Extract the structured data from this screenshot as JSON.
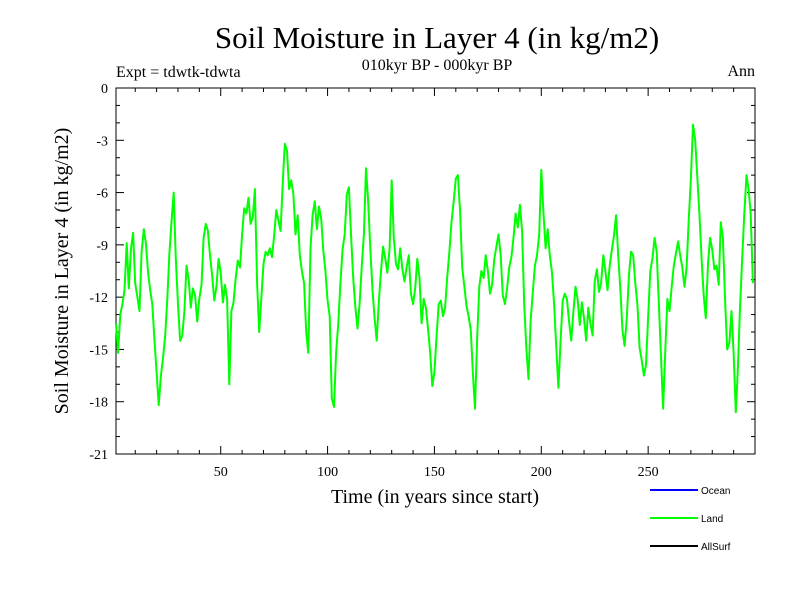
{
  "chart_data": {
    "type": "line",
    "title": "Soil Moisture in Layer 4 (in kg/m2)",
    "subtitle": "010kyr BP - 000kyr BP",
    "experiment_label": "Expt = tdwtk-tdwta",
    "period_label": "Ann",
    "xlabel": "Time (in years since start)",
    "ylabel": "Soil Moisture in Layer 4 (in kg/m2)",
    "xlim": [
      1,
      300
    ],
    "ylim": [
      -21,
      0
    ],
    "x_ticks": [
      50,
      100,
      150,
      200,
      250
    ],
    "y_ticks": [
      0,
      -3,
      -6,
      -9,
      -12,
      -15,
      -18,
      -21
    ],
    "grid": false,
    "legend": {
      "position": "bottom-right",
      "entries": [
        {
          "name": "Ocean",
          "color": "#0000ff"
        },
        {
          "name": "Land",
          "color": "#00ff00"
        },
        {
          "name": "AllSurf",
          "color": "#000000"
        }
      ]
    },
    "series": [
      {
        "name": "Land",
        "color": "#00ff00",
        "x_start": 1,
        "x_step": 1,
        "values": [
          -13.5,
          -15.2,
          -13.0,
          -12.4,
          -11.6,
          -8.9,
          -11.5,
          -9.2,
          -8.3,
          -11.2,
          -12.0,
          -12.8,
          -9.4,
          -8.1,
          -8.9,
          -10.6,
          -11.6,
          -12.4,
          -14.5,
          -16.3,
          -18.2,
          -16.5,
          -15.5,
          -14.2,
          -12.1,
          -9.5,
          -7.6,
          -6.0,
          -9.8,
          -12.4,
          -14.5,
          -14.2,
          -12.8,
          -10.2,
          -11.0,
          -12.6,
          -11.5,
          -11.9,
          -13.4,
          -12.1,
          -11.3,
          -8.6,
          -7.8,
          -8.2,
          -9.6,
          -10.8,
          -12.2,
          -11.4,
          -9.8,
          -10.6,
          -12.3,
          -11.3,
          -12.1,
          -17.0,
          -12.8,
          -12.3,
          -10.9,
          -9.9,
          -10.3,
          -8.4,
          -6.9,
          -7.2,
          -6.3,
          -7.8,
          -7.4,
          -5.8,
          -11.2,
          -14.0,
          -12.1,
          -10.1,
          -9.4,
          -9.6,
          -9.2,
          -9.7,
          -8.5,
          -7.0,
          -7.6,
          -8.2,
          -5.5,
          -3.2,
          -3.6,
          -5.8,
          -5.3,
          -6.1,
          -8.4,
          -7.3,
          -9.6,
          -10.5,
          -11.2,
          -14.0,
          -15.2,
          -9.2,
          -7.3,
          -6.5,
          -8.1,
          -6.8,
          -7.5,
          -9.3,
          -10.5,
          -12.2,
          -13.1,
          -17.8,
          -18.3,
          -15.2,
          -13.5,
          -11.2,
          -9.3,
          -8.4,
          -6.1,
          -5.7,
          -8.5,
          -10.9,
          -12.6,
          -13.8,
          -12.4,
          -10.2,
          -8.4,
          -4.6,
          -6.5,
          -9.2,
          -11.6,
          -13.2,
          -14.5,
          -12.2,
          -10.5,
          -9.1,
          -9.8,
          -10.6,
          -9.2,
          -5.3,
          -8.6,
          -10.1,
          -10.4,
          -9.2,
          -10.4,
          -11.1,
          -10.3,
          -9.6,
          -11.8,
          -12.4,
          -11.5,
          -9.8,
          -10.9,
          -13.5,
          -12.1,
          -12.6,
          -13.8,
          -15.2,
          -17.1,
          -16.3,
          -14.2,
          -12.4,
          -12.2,
          -13.1,
          -12.6,
          -10.8,
          -9.4,
          -7.7,
          -6.5,
          -5.2,
          -5.0,
          -7.1,
          -10.3,
          -11.4,
          -12.5,
          -13.1,
          -13.9,
          -16.4,
          -18.4,
          -14.3,
          -11.4,
          -10.5,
          -10.9,
          -9.6,
          -10.5,
          -11.8,
          -11.3,
          -9.8,
          -9.1,
          -8.4,
          -9.6,
          -11.9,
          -12.4,
          -11.5,
          -10.3,
          -9.7,
          -8.6,
          -7.2,
          -8.0,
          -6.7,
          -8.2,
          -12.4,
          -14.9,
          -16.7,
          -13.4,
          -11.8,
          -10.2,
          -9.6,
          -8.4,
          -4.7,
          -7.1,
          -9.2,
          -8.1,
          -9.6,
          -10.6,
          -12.4,
          -14.8,
          -17.2,
          -14.6,
          -12.2,
          -11.8,
          -12.1,
          -13.4,
          -14.5,
          -12.9,
          -11.4,
          -12.1,
          -13.6,
          -12.3,
          -13.2,
          -14.5,
          -12.6,
          -13.5,
          -14.2,
          -11.1,
          -10.4,
          -11.7,
          -11.2,
          -9.6,
          -10.5,
          -11.6,
          -10.2,
          -9.3,
          -8.5,
          -7.3,
          -9.6,
          -11.6,
          -13.9,
          -14.8,
          -13.2,
          -10.8,
          -9.4,
          -9.6,
          -11.2,
          -12.5,
          -14.9,
          -15.6,
          -16.5,
          -15.9,
          -13.2,
          -10.5,
          -9.8,
          -8.6,
          -9.4,
          -12.3,
          -15.4,
          -18.4,
          -15.2,
          -12.1,
          -12.8,
          -11.4,
          -10.2,
          -9.5,
          -8.8,
          -9.6,
          -10.3,
          -11.4,
          -10.3,
          -7.6,
          -5.2,
          -2.1,
          -3.0,
          -5.1,
          -7.2,
          -9.8,
          -11.9,
          -13.2,
          -10.1,
          -8.6,
          -9.3,
          -10.4,
          -10.2,
          -11.3,
          -7.7,
          -8.6,
          -12.2,
          -15.0,
          -14.6,
          -12.8,
          -15.2,
          -18.6,
          -16.1,
          -12.6,
          -9.8,
          -7.2,
          -5.0,
          -5.8,
          -7.2,
          -11.2
        ]
      }
    ]
  }
}
